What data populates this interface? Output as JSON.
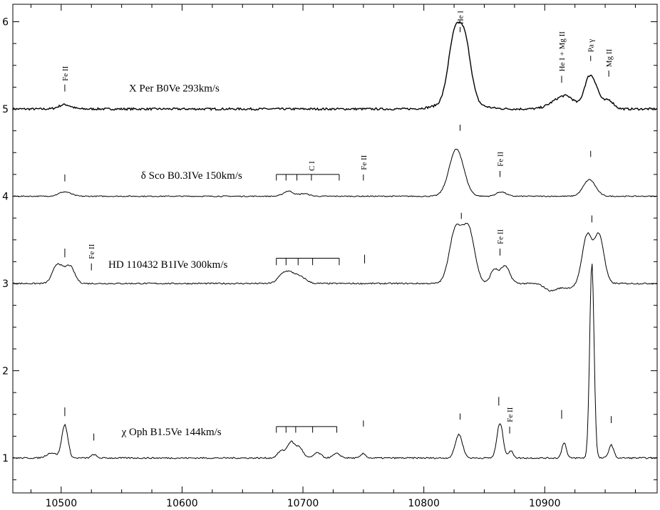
{
  "chart_data": {
    "type": "line",
    "title": "",
    "xlabel": "",
    "ylabel": "",
    "xlim": [
      10460,
      10993
    ],
    "ylim": [
      0.6,
      6.2
    ],
    "x_ticks": [
      10500,
      10600,
      10700,
      10800,
      10900
    ],
    "y_ticks": [
      1,
      2,
      3,
      4,
      5,
      6
    ],
    "grid": false,
    "series": [
      {
        "name": "X Per  B0Ve  293km/s",
        "baseline": 5.0,
        "noise": 0.012,
        "features": [
          {
            "x": 10503,
            "h": 0.05,
            "w": 5
          },
          {
            "x": 10825,
            "h": 0.68,
            "w": 5
          },
          {
            "x": 10834,
            "h": 0.66,
            "w": 5
          },
          {
            "x": 10829,
            "h": 0.1,
            "w": 14
          },
          {
            "x": 10912,
            "h": 0.1,
            "w": 8
          },
          {
            "x": 10920,
            "h": 0.08,
            "w": 6
          },
          {
            "x": 10936,
            "h": 0.3,
            "w": 4
          },
          {
            "x": 10942,
            "h": 0.2,
            "w": 4
          },
          {
            "x": 10953,
            "h": 0.1,
            "w": 4
          }
        ]
      },
      {
        "name": "δ Sco  B0.3IVe  150km/s",
        "baseline": 4.0,
        "noise": 0.006,
        "features": [
          {
            "x": 10503,
            "h": 0.05,
            "w": 5
          },
          {
            "x": 10688,
            "h": 0.06,
            "w": 4
          },
          {
            "x": 10701,
            "h": 0.03,
            "w": 4
          },
          {
            "x": 10827,
            "h": 0.54,
            "w": 6
          },
          {
            "x": 10864,
            "h": 0.05,
            "w": 4
          },
          {
            "x": 10937,
            "h": 0.19,
            "w": 5
          }
        ]
      },
      {
        "name": "HD 110432  B1IVe 300km/s",
        "baseline": 3.0,
        "noise": 0.008,
        "features": [
          {
            "x": 10497,
            "h": 0.22,
            "w": 4
          },
          {
            "x": 10507,
            "h": 0.2,
            "w": 4
          },
          {
            "x": 10683,
            "h": 0.06,
            "w": 4
          },
          {
            "x": 10690,
            "h": 0.12,
            "w": 6
          },
          {
            "x": 10700,
            "h": 0.04,
            "w": 4
          },
          {
            "x": 10826,
            "h": 0.6,
            "w": 5
          },
          {
            "x": 10837,
            "h": 0.62,
            "w": 5
          },
          {
            "x": 10858,
            "h": 0.15,
            "w": 3
          },
          {
            "x": 10867,
            "h": 0.2,
            "w": 4
          },
          {
            "x": 10935,
            "h": 0.55,
            "w": 4
          },
          {
            "x": 10945,
            "h": 0.55,
            "w": 4
          },
          {
            "x": 10905,
            "h": -0.08,
            "w": 5
          },
          {
            "x": 10919,
            "h": -0.05,
            "w": 6
          }
        ]
      },
      {
        "name": "χ Oph  B1.5Ve  144km/s",
        "baseline": 1.0,
        "noise": 0.008,
        "features": [
          {
            "x": 10492,
            "h": 0.06,
            "w": 4
          },
          {
            "x": 10503,
            "h": 0.38,
            "w": 2.5
          },
          {
            "x": 10527,
            "h": 0.04,
            "w": 2
          },
          {
            "x": 10682,
            "h": 0.08,
            "w": 3
          },
          {
            "x": 10690,
            "h": 0.18,
            "w": 3
          },
          {
            "x": 10697,
            "h": 0.12,
            "w": 3
          },
          {
            "x": 10712,
            "h": 0.06,
            "w": 3
          },
          {
            "x": 10728,
            "h": 0.05,
            "w": 3
          },
          {
            "x": 10750,
            "h": 0.05,
            "w": 2
          },
          {
            "x": 10829,
            "h": 0.27,
            "w": 3
          },
          {
            "x": 10863,
            "h": 0.4,
            "w": 2.5
          },
          {
            "x": 10872,
            "h": 0.08,
            "w": 2
          },
          {
            "x": 10916,
            "h": 0.18,
            "w": 1.8
          },
          {
            "x": 10939,
            "h": 2.24,
            "w": 1.8
          },
          {
            "x": 10955,
            "h": 0.15,
            "w": 2
          }
        ]
      }
    ],
    "annotations": [
      {
        "label": "Fe II",
        "x": 10503,
        "y": 5.2,
        "ticklen": 0.08,
        "gap": 0.04
      },
      {
        "label": "He I",
        "x": 10830,
        "y": 5.88,
        "ticklen": 0.06,
        "gap": 0.03
      },
      {
        "label": "He I + Mg II",
        "x": 10914,
        "y": 5.3,
        "ticklen": 0.08,
        "gap": 0.05
      },
      {
        "label": "Pa γ",
        "x": 10938,
        "y": 5.55,
        "ticklen": 0.06,
        "gap": 0.04
      },
      {
        "label": "Mg II",
        "x": 10953,
        "y": 5.37,
        "ticklen": 0.07,
        "gap": 0.04
      },
      {
        "label": "C I",
        "x": 10707,
        "y": 4.26,
        "ticklen": 0.0,
        "gap": 0.03
      },
      {
        "label": "Fe II",
        "x": 10750,
        "y": 4.18,
        "ticklen": 0.07,
        "gap": 0.05
      },
      {
        "label": "Fe II",
        "x": 10863,
        "y": 4.22,
        "ticklen": 0.07,
        "gap": 0.05
      },
      {
        "label": "Fe II",
        "x": 10525,
        "y": 3.15,
        "ticklen": 0.08,
        "gap": 0.05
      },
      {
        "label": "Fe II",
        "x": 10863,
        "y": 3.32,
        "ticklen": 0.08,
        "gap": 0.05
      },
      {
        "label": "Fe II",
        "x": 10871,
        "y": 1.28,
        "ticklen": 0.08,
        "gap": 0.05
      }
    ],
    "markers": [
      {
        "x": 10830,
        "y": 4.75,
        "len": 0.07
      },
      {
        "x": 10938,
        "y": 4.45,
        "len": 0.07
      },
      {
        "x": 10503,
        "y": 4.17,
        "len": 0.08
      },
      {
        "x": 10831,
        "y": 3.74,
        "len": 0.07
      },
      {
        "x": 10939,
        "y": 3.7,
        "len": 0.08
      },
      {
        "x": 10503,
        "y": 3.3,
        "len": 0.1
      },
      {
        "x": 10751,
        "y": 3.23,
        "len": 0.1
      },
      {
        "x": 10503,
        "y": 1.48,
        "len": 0.1
      },
      {
        "x": 10527,
        "y": 1.2,
        "len": 0.08
      },
      {
        "x": 10750,
        "y": 1.36,
        "len": 0.07
      },
      {
        "x": 10830,
        "y": 1.44,
        "len": 0.07
      },
      {
        "x": 10862,
        "y": 1.6,
        "len": 0.1
      },
      {
        "x": 10914,
        "y": 1.45,
        "len": 0.1
      },
      {
        "x": 10955,
        "y": 1.4,
        "len": 0.08
      }
    ],
    "bracket_groups": [
      {
        "x_start": 10678,
        "x_end": 10730,
        "y": 4.25,
        "ticks": [
          10678,
          10686,
          10695,
          10707,
          10730
        ],
        "down": 0.07
      },
      {
        "x_start": 10678,
        "x_end": 10730,
        "y": 3.29,
        "ticks": [
          10678,
          10686,
          10696,
          10708,
          10730
        ],
        "down": 0.08
      },
      {
        "x_start": 10678,
        "x_end": 10728,
        "y": 1.36,
        "ticks": [
          10678,
          10686,
          10694,
          10708,
          10728
        ],
        "down": 0.07
      }
    ],
    "star_labels": [
      {
        "text": "X Per    B0Ve   293km/s",
        "x": 10556,
        "y": 5.2
      },
      {
        "text": "δ Sco    B0.3IVe   150km/s",
        "x": 10566,
        "y": 4.2
      },
      {
        "text": "HD 110432   B1IVe  300km/s",
        "x": 10539,
        "y": 3.18
      },
      {
        "text": "χ Oph    B1.5Ve   144km/s",
        "x": 10550,
        "y": 1.26
      }
    ]
  }
}
